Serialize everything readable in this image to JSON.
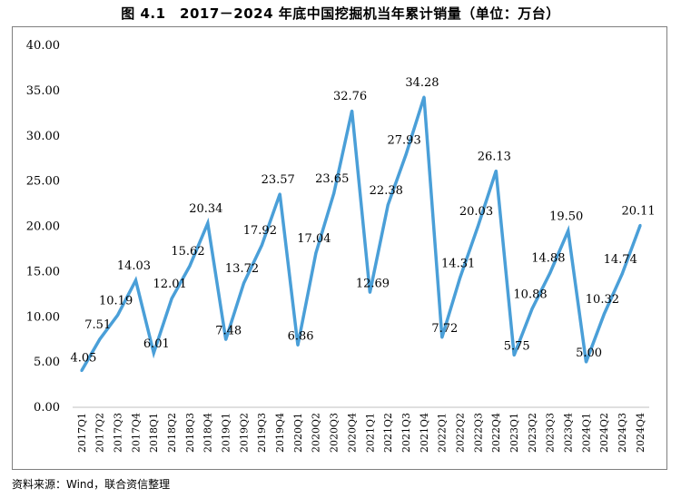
{
  "title": "图 4.1　2017－2024 年底中国挖掘机当年累计销量（单位：万台）",
  "source": "资料来源：Wind，联合资信整理",
  "chart_data": {
    "type": "line",
    "title": "图 4.1　2017－2024 年底中国挖掘机当年累计销量（单位：万台）",
    "xlabel": "",
    "ylabel": "",
    "ylim": [
      0,
      40
    ],
    "yticks": [
      "0.00",
      "5.00",
      "10.00",
      "15.00",
      "20.00",
      "25.00",
      "30.00",
      "35.00",
      "40.00"
    ],
    "grid": false,
    "color": "#4a9fd8",
    "categories": [
      "2017Q1",
      "2017Q2",
      "2017Q3",
      "2017Q4",
      "2018Q1",
      "2018Q2",
      "2018Q3",
      "2018Q4",
      "2019Q1",
      "2019Q2",
      "2019Q3",
      "2019Q4",
      "2020Q1",
      "2020Q2",
      "2020Q3",
      "2020Q4",
      "2021Q1",
      "2021Q2",
      "2021Q3",
      "2021Q4",
      "2022Q1",
      "2022Q2",
      "2022Q3",
      "2022Q4",
      "2023Q1",
      "2023Q2",
      "2023Q3",
      "2023Q4",
      "2024Q1",
      "2024Q2",
      "2024Q3",
      "2024Q4"
    ],
    "values": [
      4.05,
      7.51,
      10.19,
      14.03,
      6.01,
      12.01,
      15.62,
      20.34,
      7.48,
      13.72,
      17.92,
      23.57,
      6.86,
      17.04,
      23.65,
      32.76,
      12.69,
      22.38,
      27.93,
      34.28,
      7.72,
      14.31,
      20.03,
      26.13,
      5.75,
      10.88,
      14.88,
      19.5,
      5.0,
      10.32,
      14.74,
      20.11
    ],
    "labels": [
      "4.05",
      "7.51",
      "10.19",
      "14.03",
      "6.01",
      "12.01",
      "15.62",
      "20.34",
      "7.48",
      "13.72",
      "17.92",
      "23.57",
      "6.86",
      "17.04",
      "23.65",
      "32.76",
      "12.69",
      "22.38",
      "27.93",
      "34.28",
      "7.72",
      "14.31",
      "20.03",
      "26.13",
      "5.75",
      "10.88",
      "14.88",
      "19.50",
      "5.00",
      "10.32",
      "14.74",
      "20.11"
    ]
  }
}
